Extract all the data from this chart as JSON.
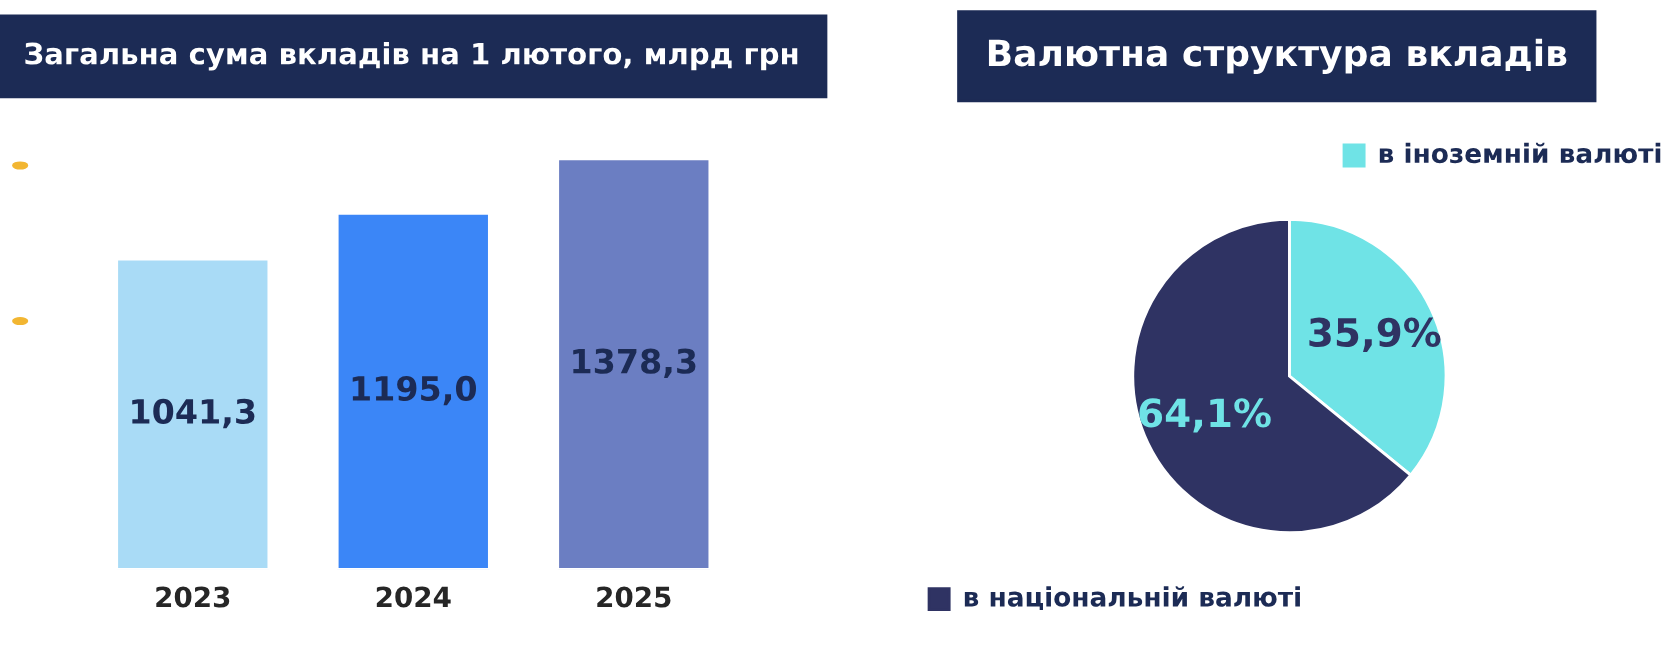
{
  "chart_data": [
    {
      "type": "bar",
      "title": "Загальна сума вкладів на 1 лютого, млрд грн",
      "categories": [
        "2023",
        "2024",
        "2025"
      ],
      "values": [
        1041.3,
        1195.0,
        1378.3
      ],
      "colors": [
        "#a9dbf6",
        "#3b86f7",
        "#6b7ec2"
      ],
      "value_labels": [
        "1041,3",
        "1195,0",
        "1378,3"
      ]
    },
    {
      "type": "pie",
      "title": "Валютна структура вкладів",
      "categories": [
        "в іноземній валюті",
        "в національній валюті"
      ],
      "values": [
        35.9,
        64.1
      ],
      "colors": [
        "#6fe3e6",
        "#2f3363"
      ],
      "value_labels": [
        "35,9%",
        "64,1%"
      ],
      "legend": "right"
    }
  ]
}
